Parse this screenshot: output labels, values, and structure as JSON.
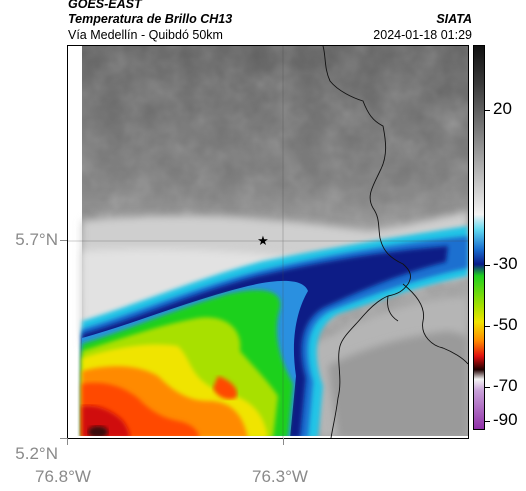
{
  "header": {
    "title_line1": "GOES-EAST",
    "title_line2": "Temperatura de Brillo CH13",
    "subtitle": "Vía Medellín - Quibdó 50km",
    "organization": "SIATA",
    "timestamp": "2024-01-18 01:29"
  },
  "map": {
    "latitude_labels": [
      "5.7°N",
      "5.2°N"
    ],
    "longitude_labels": [
      "76.8°W",
      "76.3°W"
    ],
    "marker": "star-icon"
  },
  "colorbar": {
    "tick_labels": [
      "20",
      "-30",
      "-50",
      "-70",
      "-90"
    ],
    "colors": {
      "warm_gray": "#5a5a5a",
      "cold_blue": "#0a1c8a",
      "cyan": "#1fc8e8",
      "green": "#1fd01f",
      "yellow": "#e8f000",
      "orange": "#ff7a00",
      "red": "#e01010",
      "magenta": "#b050c0"
    }
  }
}
